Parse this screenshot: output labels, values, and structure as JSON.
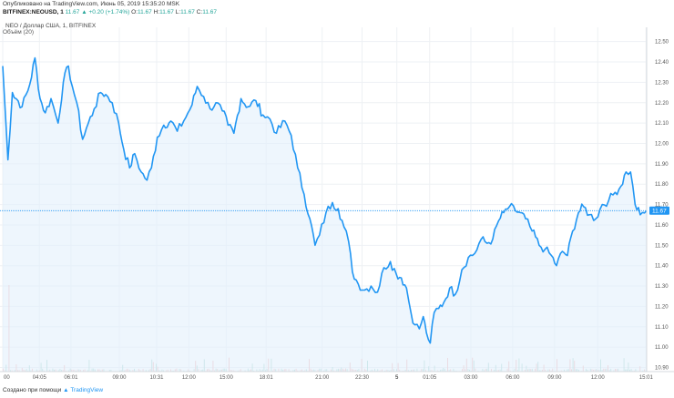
{
  "header": {
    "published": "Опубликовано на TradingView.com, Июнь 05, 2019 15:35:20 MSK",
    "symbol": "BITFINEX:NEOUSD, 1",
    "change": "11.67 ▲ +0.20 (+1.74%)",
    "o_label": "O:",
    "o_value": "11.67",
    "h_label": "H:",
    "h_value": "11.67",
    "l_label": "L:",
    "l_value": "11.67",
    "c_label": "C:",
    "c_value": "11.67",
    "volume_label": "Объём (20)"
  },
  "footer": {
    "text": "Создано при помощи",
    "brand": "TradingView"
  },
  "colors": {
    "line": "#2196f3",
    "area": "#e3f0fc",
    "grid": "#eef1f4",
    "price_tag": "#2196f3",
    "vol_up": "#a9d7cf",
    "vol_down": "#f3b8b8"
  },
  "chart_data": {
    "type": "line",
    "title": "NEO / Доллар США, 1, BITFINEX",
    "ylim": [
      10.88,
      12.57
    ],
    "y_ticks": [
      "12.50",
      "12.40",
      "12.30",
      "12.20",
      "12.10",
      "12.00",
      "11.90",
      "11.80",
      "11.70",
      "11.60",
      "11.50",
      "11.40",
      "11.30",
      "11.20",
      "11.10",
      "11.00",
      "10.90"
    ],
    "y_tick_values": [
      12.5,
      12.4,
      12.3,
      12.2,
      12.1,
      12.0,
      11.9,
      11.8,
      11.7,
      11.6,
      11.5,
      11.4,
      11.3,
      11.2,
      11.1,
      11.0,
      10.9
    ],
    "x_ticks": [
      "00",
      "04:05",
      "06:01",
      "09:00",
      "10:31",
      "12:00",
      "15:00",
      "18:01",
      "21:00",
      "22:30",
      "5",
      "01:05",
      "03:00",
      "06:00",
      "09:00",
      "12:00",
      "15:01"
    ],
    "x_tick_positions": [
      0.0,
      0.057,
      0.106,
      0.181,
      0.239,
      0.289,
      0.347,
      0.409,
      0.496,
      0.558,
      0.612,
      0.663,
      0.727,
      0.792,
      0.857,
      0.924,
      0.999
    ],
    "last_price": 11.67,
    "last_price_label": "11.67",
    "anchors": [
      [
        0.0,
        12.38
      ],
      [
        0.008,
        11.92
      ],
      [
        0.015,
        12.25
      ],
      [
        0.03,
        12.18
      ],
      [
        0.042,
        12.29
      ],
      [
        0.05,
        12.42
      ],
      [
        0.058,
        12.22
      ],
      [
        0.066,
        12.15
      ],
      [
        0.075,
        12.22
      ],
      [
        0.086,
        12.1
      ],
      [
        0.094,
        12.3
      ],
      [
        0.102,
        12.38
      ],
      [
        0.108,
        12.28
      ],
      [
        0.115,
        12.2
      ],
      [
        0.124,
        12.02
      ],
      [
        0.133,
        12.1
      ],
      [
        0.142,
        12.17
      ],
      [
        0.152,
        12.25
      ],
      [
        0.16,
        12.24
      ],
      [
        0.17,
        12.2
      ],
      [
        0.18,
        12.1
      ],
      [
        0.188,
        11.97
      ],
      [
        0.197,
        11.88
      ],
      [
        0.205,
        11.95
      ],
      [
        0.215,
        11.86
      ],
      [
        0.224,
        11.82
      ],
      [
        0.231,
        11.88
      ],
      [
        0.24,
        12.03
      ],
      [
        0.25,
        12.09
      ],
      [
        0.261,
        12.11
      ],
      [
        0.271,
        12.06
      ],
      [
        0.281,
        12.11
      ],
      [
        0.294,
        12.19
      ],
      [
        0.302,
        12.28
      ],
      [
        0.312,
        12.23
      ],
      [
        0.322,
        12.17
      ],
      [
        0.331,
        12.2
      ],
      [
        0.341,
        12.16
      ],
      [
        0.35,
        12.09
      ],
      [
        0.359,
        12.05
      ],
      [
        0.37,
        12.22
      ],
      [
        0.381,
        12.18
      ],
      [
        0.393,
        12.21
      ],
      [
        0.404,
        12.14
      ],
      [
        0.415,
        12.12
      ],
      [
        0.425,
        12.05
      ],
      [
        0.438,
        12.11
      ],
      [
        0.448,
        12.04
      ],
      [
        0.458,
        11.88
      ],
      [
        0.468,
        11.75
      ],
      [
        0.477,
        11.63
      ],
      [
        0.485,
        11.5
      ],
      [
        0.492,
        11.55
      ],
      [
        0.502,
        11.66
      ],
      [
        0.512,
        11.71
      ],
      [
        0.521,
        11.68
      ],
      [
        0.53,
        11.59
      ],
      [
        0.537,
        11.52
      ],
      [
        0.543,
        11.37
      ],
      [
        0.552,
        11.31
      ],
      [
        0.562,
        11.28
      ],
      [
        0.572,
        11.3
      ],
      [
        0.582,
        11.27
      ],
      [
        0.592,
        11.39
      ],
      [
        0.602,
        11.42
      ],
      [
        0.611,
        11.36
      ],
      [
        0.619,
        11.34
      ],
      [
        0.627,
        11.29
      ],
      [
        0.634,
        11.17
      ],
      [
        0.64,
        11.11
      ],
      [
        0.647,
        11.09
      ],
      [
        0.653,
        11.15
      ],
      [
        0.658,
        11.07
      ],
      [
        0.664,
        11.02
      ],
      [
        0.67,
        11.17
      ],
      [
        0.677,
        11.19
      ],
      [
        0.685,
        11.22
      ],
      [
        0.694,
        11.29
      ],
      [
        0.703,
        11.26
      ],
      [
        0.713,
        11.38
      ],
      [
        0.723,
        11.44
      ],
      [
        0.733,
        11.46
      ],
      [
        0.743,
        11.53
      ],
      [
        0.752,
        11.51
      ],
      [
        0.761,
        11.53
      ],
      [
        0.77,
        11.62
      ],
      [
        0.778,
        11.66
      ],
      [
        0.787,
        11.69
      ],
      [
        0.796,
        11.67
      ],
      [
        0.804,
        11.66
      ],
      [
        0.812,
        11.63
      ],
      [
        0.822,
        11.57
      ],
      [
        0.833,
        11.5
      ],
      [
        0.842,
        11.48
      ],
      [
        0.852,
        11.45
      ],
      [
        0.86,
        11.4
      ],
      [
        0.869,
        11.47
      ],
      [
        0.877,
        11.45
      ],
      [
        0.885,
        11.57
      ],
      [
        0.894,
        11.66
      ],
      [
        0.902,
        11.69
      ],
      [
        0.911,
        11.65
      ],
      [
        0.921,
        11.63
      ],
      [
        0.931,
        11.7
      ],
      [
        0.941,
        11.72
      ],
      [
        0.951,
        11.76
      ],
      [
        0.96,
        11.79
      ],
      [
        0.968,
        11.86
      ],
      [
        0.975,
        11.86
      ],
      [
        0.982,
        11.7
      ],
      [
        0.99,
        11.65
      ],
      [
        1.0,
        11.67
      ]
    ]
  }
}
